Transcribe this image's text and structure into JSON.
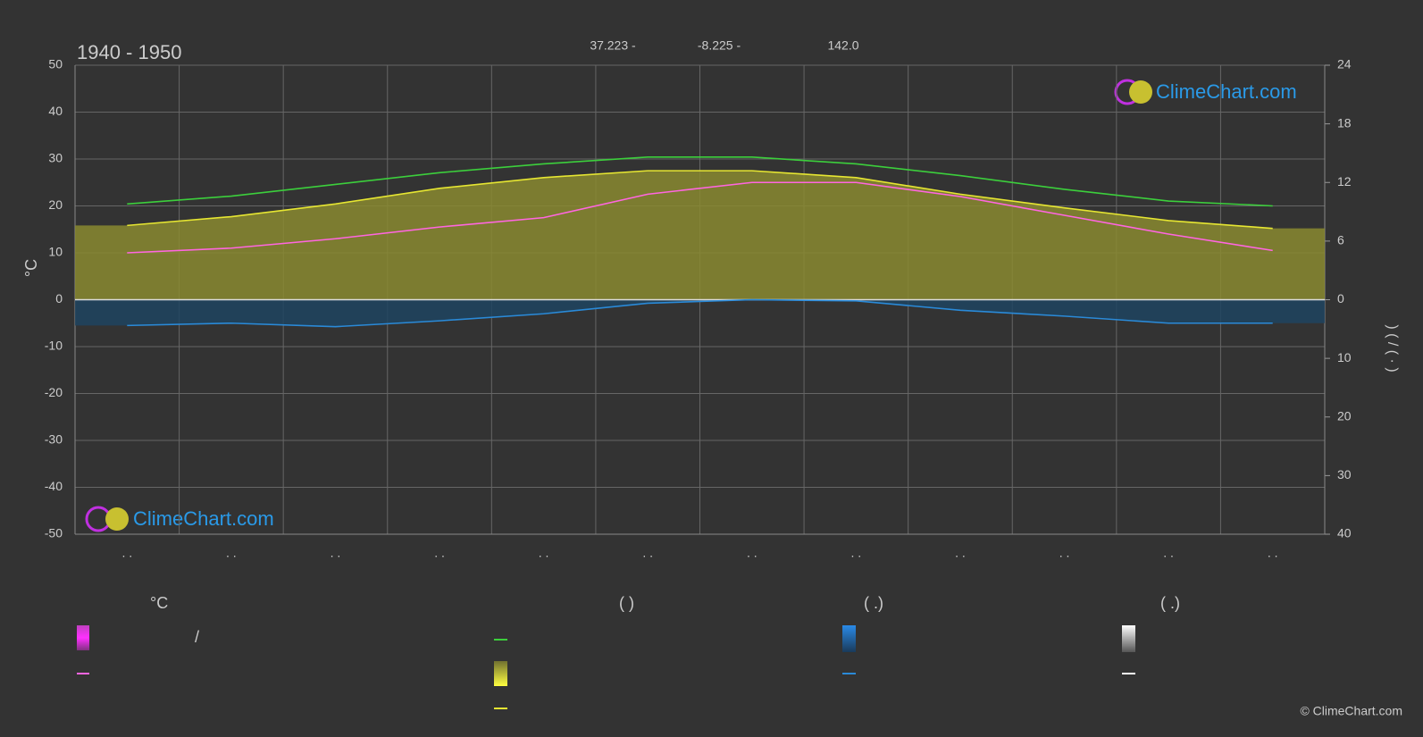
{
  "chart_data": {
    "type": "line",
    "title": "1940 - 1950",
    "header": [
      "37.223 -",
      "-8.225 -",
      "142.0"
    ],
    "ylabel": "°C",
    "y2label": ")      (      /      (   ·   )",
    "categories": [
      ". .",
      ". .",
      ". .",
      ". .",
      ". .",
      ". .",
      ". .",
      ". .",
      ". .",
      ". .",
      ". .",
      ". ."
    ],
    "ylim": [
      -50,
      50
    ],
    "yticks": [
      -50,
      -40,
      -30,
      -20,
      -10,
      0,
      10,
      20,
      30,
      40,
      50
    ],
    "y2lim": [
      0,
      24
    ],
    "y2ticks": [
      0,
      6,
      12,
      18,
      24
    ],
    "y3lim": [
      0,
      40
    ],
    "y3ticks": [
      10,
      20,
      30,
      40
    ],
    "grid": true,
    "series": [
      {
        "color": "#3ccf3c",
        "axis": "y2",
        "values": [
          9.8,
          10.6,
          11.8,
          13.0,
          13.9,
          14.6,
          14.6,
          13.9,
          12.7,
          11.3,
          10.1,
          9.6
        ]
      },
      {
        "color": "#e6e632",
        "axis": "y2",
        "fill": "#8a8a30",
        "values": [
          7.6,
          8.5,
          9.8,
          11.4,
          12.5,
          13.2,
          13.2,
          12.5,
          10.8,
          9.4,
          8.1,
          7.3
        ]
      },
      {
        "color": "#ff66e0",
        "axis": "y",
        "values": [
          10,
          11,
          13,
          15.5,
          17.5,
          22.5,
          25,
          25,
          22,
          18,
          14,
          10.5
        ]
      },
      {
        "color": "#2a8ad8",
        "axis": "y3",
        "fill": "#1f4460",
        "values": [
          4.4,
          4.0,
          4.6,
          3.6,
          2.4,
          0.6,
          0,
          0.2,
          1.8,
          2.8,
          4.0,
          4.0
        ]
      }
    ],
    "legend": [
      "°C",
      "(           )",
      "(    .)",
      "(    .)",
      "/"
    ],
    "brand": "ClimeChart.com",
    "copyright": "© ClimeChart.com"
  }
}
